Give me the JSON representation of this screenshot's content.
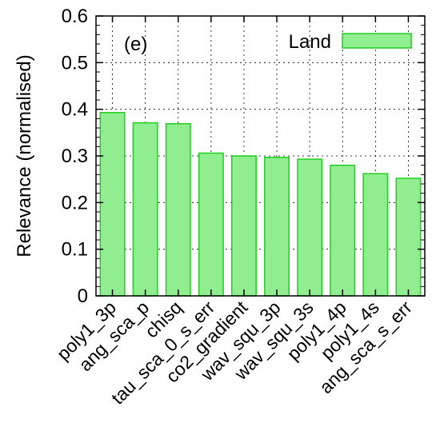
{
  "chart_data": {
    "type": "bar",
    "panel_label": "(e)",
    "xlabel": "",
    "ylabel": "Relevance (normalised)",
    "ylim": [
      0,
      0.6
    ],
    "yticks": [
      "0",
      "0.1",
      "0.2",
      "0.3",
      "0.4",
      "0.5",
      "0.6"
    ],
    "grid": true,
    "legend_position": "top-right",
    "categories": [
      "poly1_3p",
      "ang_sca_p",
      "chisq",
      "tau_sca_0_s_err",
      "co2_gradient",
      "wav_squ_3p",
      "wav_squ_3s",
      "poly1_4p",
      "poly1_4s",
      "ang_sca_s_err"
    ],
    "series": [
      {
        "name": "Land",
        "color": "#90EE90",
        "edge_color": "#22CC22",
        "values": [
          0.393,
          0.371,
          0.369,
          0.306,
          0.3,
          0.297,
          0.293,
          0.28,
          0.262,
          0.252
        ]
      }
    ]
  }
}
